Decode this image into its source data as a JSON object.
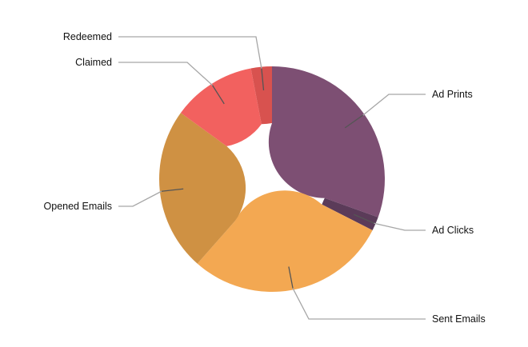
{
  "chart_data": {
    "type": "pie",
    "variant": "donut",
    "title": "",
    "legend": "none",
    "slices": [
      {
        "label": "Ad Prints",
        "value": 30.5,
        "color": "#7d4f73"
      },
      {
        "label": "Ad Clicks",
        "value": 2.0,
        "color": "#5b3b59"
      },
      {
        "label": "Sent Emails",
        "value": 29.0,
        "color": "#f3a852"
      },
      {
        "label": "Opened Emails",
        "value": 23.5,
        "color": "#cf9143"
      },
      {
        "label": "Claimed",
        "value": 12.0,
        "color": "#f2615f"
      },
      {
        "label": "Redeemed",
        "value": 3.0,
        "color": "#d8524f"
      }
    ]
  }
}
